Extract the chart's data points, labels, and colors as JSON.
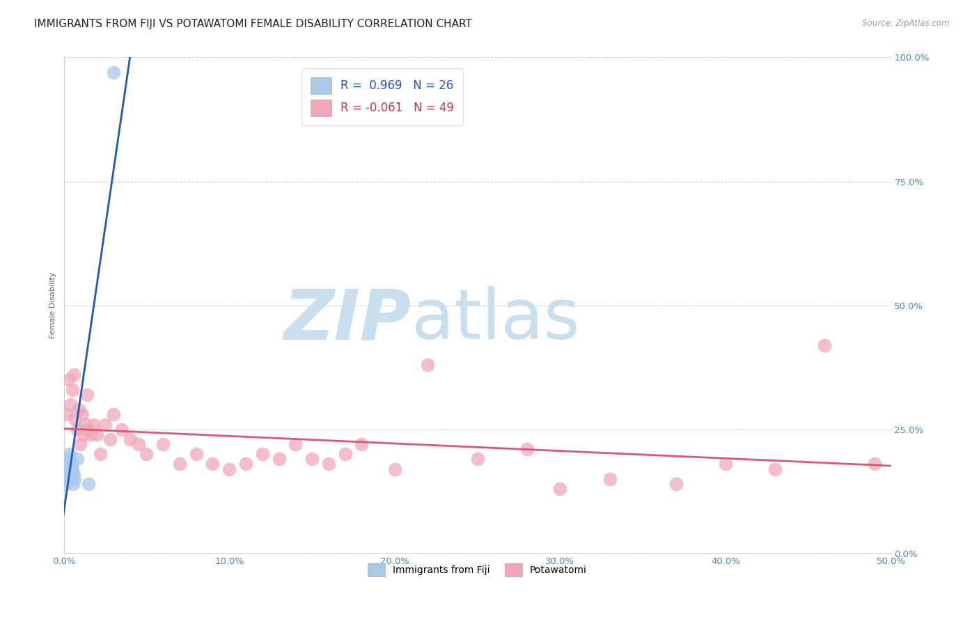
{
  "title": "IMMIGRANTS FROM FIJI VS POTAWATOMI FEMALE DISABILITY CORRELATION CHART",
  "source": "Source: ZipAtlas.com",
  "ylabel": "Female Disability",
  "x_tick_labels": [
    "0.0%",
    "10.0%",
    "20.0%",
    "30.0%",
    "40.0%",
    "50.0%"
  ],
  "x_tick_vals": [
    0,
    10,
    20,
    30,
    40,
    50
  ],
  "y_tick_labels_right": [
    "0.0%",
    "25.0%",
    "50.0%",
    "75.0%",
    "100.0%"
  ],
  "y_tick_vals": [
    0,
    25,
    50,
    75,
    100
  ],
  "legend_fiji_label": "Immigrants from Fiji",
  "legend_potawatomi_label": "Potawatomi",
  "fiji_R": "0.969",
  "fiji_N": "26",
  "potawatomi_R": "-0.061",
  "potawatomi_N": "49",
  "fiji_color": "#aac8e8",
  "fiji_line_color": "#2255bb",
  "potawatomi_color": "#f0a8b8",
  "potawatomi_line_color": "#e05575",
  "background_color": "#ffffff",
  "watermark_zip": "ZIP",
  "watermark_atlas": "atlas",
  "watermark_color_zip": "#c8dff0",
  "watermark_color_atlas": "#c8dff0",
  "fiji_scatter_x": [
    0.05,
    0.08,
    0.1,
    0.12,
    0.15,
    0.18,
    0.2,
    0.22,
    0.25,
    0.28,
    0.3,
    0.32,
    0.35,
    0.38,
    0.4,
    0.42,
    0.45,
    0.48,
    0.5,
    0.52,
    0.55,
    0.6,
    0.65,
    0.8,
    1.5,
    3.0
  ],
  "fiji_scatter_y": [
    15,
    14,
    16,
    17,
    18,
    16,
    15,
    17,
    18,
    19,
    17,
    18,
    20,
    19,
    17,
    16,
    15,
    18,
    17,
    16,
    14,
    16,
    15,
    19,
    14,
    97
  ],
  "potawatomi_scatter_x": [
    0.15,
    0.3,
    0.4,
    0.5,
    0.6,
    0.7,
    0.8,
    0.9,
    1.0,
    1.1,
    1.2,
    1.3,
    1.4,
    1.5,
    1.6,
    1.8,
    2.0,
    2.2,
    2.5,
    2.8,
    3.0,
    3.5,
    4.0,
    4.5,
    5.0,
    6.0,
    7.0,
    8.0,
    9.0,
    10.0,
    11.0,
    12.0,
    13.0,
    14.0,
    15.0,
    16.0,
    17.0,
    18.0,
    20.0,
    22.0,
    25.0,
    28.0,
    30.0,
    33.0,
    37.0,
    40.0,
    43.0,
    46.0,
    49.0
  ],
  "potawatomi_scatter_y": [
    28,
    35,
    30,
    33,
    36,
    27,
    25,
    29,
    22,
    28,
    24,
    26,
    32,
    25,
    24,
    26,
    24,
    20,
    26,
    23,
    28,
    25,
    23,
    22,
    20,
    22,
    18,
    20,
    18,
    17,
    18,
    20,
    19,
    22,
    19,
    18,
    20,
    22,
    17,
    38,
    19,
    21,
    13,
    15,
    14,
    18,
    17,
    42,
    18
  ],
  "xlim": [
    0,
    50
  ],
  "ylim": [
    0,
    100
  ],
  "title_fontsize": 11,
  "axis_fontsize": 8,
  "tick_fontsize": 9.5
}
